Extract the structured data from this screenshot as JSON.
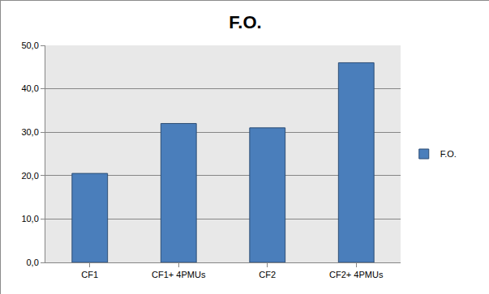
{
  "chart_data": {
    "type": "bar",
    "title": "F.O.",
    "categories": [
      "CF1",
      "CF1+ 4PMUs",
      "CF2",
      "CF2+ 4PMUs"
    ],
    "series": [
      {
        "name": "F.O.",
        "color": "#4a7ebb",
        "values": [
          20.5,
          32,
          31,
          46
        ]
      }
    ],
    "ylim": [
      0,
      50
    ],
    "yticks": [
      {
        "value": 0,
        "label": "0,0"
      },
      {
        "value": 10,
        "label": "10,0"
      },
      {
        "value": 20,
        "label": "20,0"
      },
      {
        "value": 30,
        "label": "30,0"
      },
      {
        "value": 40,
        "label": "40,0"
      },
      {
        "value": 50,
        "label": "50,0"
      }
    ],
    "grid": true,
    "legend": "right"
  }
}
